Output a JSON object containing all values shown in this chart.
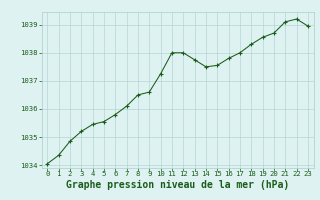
{
  "x": [
    0,
    1,
    2,
    3,
    4,
    5,
    6,
    7,
    8,
    9,
    10,
    11,
    12,
    13,
    14,
    15,
    16,
    17,
    18,
    19,
    20,
    21,
    22,
    23
  ],
  "y": [
    1034.05,
    1034.35,
    1034.85,
    1035.2,
    1035.45,
    1035.55,
    1035.8,
    1036.1,
    1036.5,
    1036.6,
    1037.25,
    1038.0,
    1038.0,
    1037.75,
    1037.5,
    1037.55,
    1037.8,
    1038.0,
    1038.3,
    1038.55,
    1038.7,
    1039.1,
    1039.2,
    1038.95
  ],
  "ylim": [
    1033.9,
    1039.45
  ],
  "yticks": [
    1034,
    1035,
    1036,
    1037,
    1038,
    1039
  ],
  "xticks": [
    0,
    1,
    2,
    3,
    4,
    5,
    6,
    7,
    8,
    9,
    10,
    11,
    12,
    13,
    14,
    15,
    16,
    17,
    18,
    19,
    20,
    21,
    22,
    23
  ],
  "line_color": "#1a5c1a",
  "marker_color": "#1a5c1a",
  "bg_color": "#dff2f2",
  "grid_color": "#aacece",
  "xlabel": "Graphe pression niveau de la mer (hPa)",
  "xlabel_color": "#1a5c1a",
  "tick_color": "#1a5c1a",
  "tick_fontsize": 5.2,
  "xlabel_fontsize": 7.0
}
